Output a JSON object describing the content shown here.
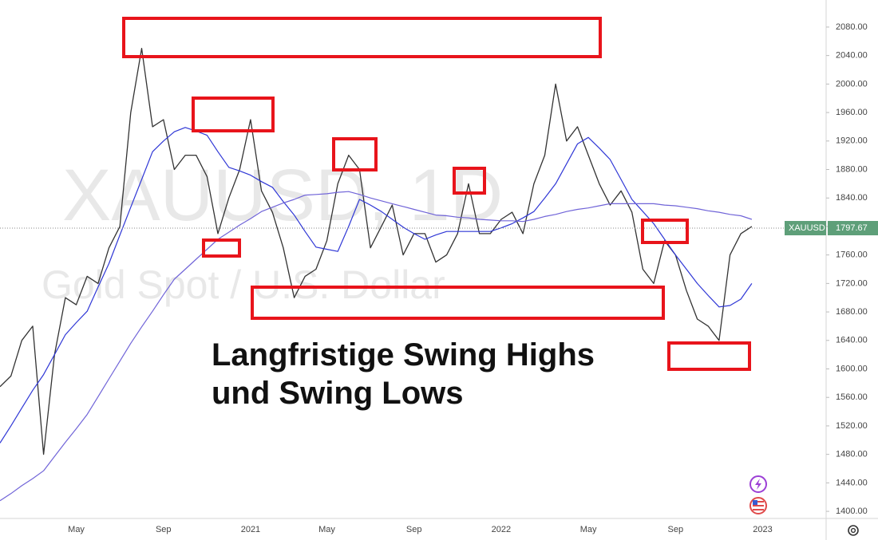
{
  "chart_data": {
    "type": "line",
    "watermark_symbol": "XAUUSD, 1D",
    "watermark_description": "Gold Spot / U.S. Dollar",
    "annotations": [
      "Langfristige Swing Highs",
      "und Swing Lows"
    ],
    "categories": [
      null,
      null,
      null,
      null,
      null,
      null,
      null,
      "May",
      null,
      null,
      null,
      null,
      null,
      null,
      null,
      "Sep",
      null,
      null,
      null,
      null,
      null,
      null,
      null,
      "2021",
      null,
      null,
      null,
      null,
      null,
      null,
      "May",
      null,
      null,
      null,
      null,
      null,
      null,
      null,
      "Sep",
      null,
      null,
      null,
      null,
      null,
      null,
      null,
      "2022",
      null,
      null,
      null,
      null,
      null,
      null,
      null,
      "May",
      null,
      null,
      null,
      null,
      null,
      null,
      null,
      "Sep",
      null,
      null,
      null,
      null,
      null,
      null,
      null,
      "2023"
    ],
    "series": [
      {
        "name": "XAUUSD",
        "color": "#333333",
        "values": [
          1575,
          1590,
          1640,
          1660,
          1480,
          1620,
          1700,
          1690,
          1730,
          1720,
          1770,
          1800,
          1960,
          2050,
          1940,
          1950,
          1880,
          1900,
          1900,
          1870,
          1790,
          1840,
          1880,
          1950,
          1850,
          1820,
          1770,
          1700,
          1730,
          1740,
          1780,
          1860,
          1900,
          1880,
          1770,
          1800,
          1830,
          1760,
          1790,
          1790,
          1750,
          1760,
          1790,
          1860,
          1790,
          1790,
          1810,
          1820,
          1790,
          1860,
          1900,
          2000,
          1920,
          1940,
          1900,
          1860,
          1830,
          1850,
          1820,
          1740,
          1720,
          1780,
          1760,
          1710,
          1670,
          1660,
          1640,
          1760,
          1790,
          1800,
          null
        ]
      },
      {
        "color": "#2f37d6",
        "values": [
          1496,
          1520,
          1545,
          1570,
          1592,
          1620,
          1648,
          1665,
          1681,
          1715,
          1748,
          1788,
          1827,
          1866,
          1905,
          1920,
          1933,
          1939,
          1934,
          1928,
          1905,
          1883,
          1878,
          1872,
          1863,
          1855,
          1835,
          1816,
          1793,
          1771,
          1768,
          1765,
          1800,
          1838,
          1830,
          1821,
          1810,
          1799,
          1790,
          1782,
          1788,
          1793,
          1793,
          1793,
          1793,
          1793,
          1798,
          1804,
          1812,
          1821,
          1840,
          1860,
          1888,
          1916,
          1925,
          1910,
          1894,
          1866,
          1838,
          1821,
          1804,
          1782,
          1760,
          1740,
          1720,
          1703,
          1687,
          1689,
          1698,
          1720,
          null
        ]
      },
      {
        "color": "#7064d8",
        "values": [
          1415,
          1425,
          1436,
          1446,
          1457,
          1477,
          1497,
          1516,
          1536,
          1561,
          1586,
          1611,
          1636,
          1659,
          1681,
          1704,
          1726,
          1740,
          1754,
          1768,
          1782,
          1792,
          1802,
          1811,
          1821,
          1827,
          1833,
          1838,
          1844,
          1845,
          1846,
          1848,
          1849,
          1845,
          1840,
          1836,
          1832,
          1828,
          1824,
          1820,
          1816,
          1815,
          1813,
          1812,
          1810,
          1809,
          1808,
          1808,
          1807,
          1810,
          1814,
          1817,
          1821,
          1824,
          1826,
          1829,
          1832,
          1832,
          1832,
          1832,
          1832,
          1830,
          1829,
          1827,
          1825,
          1822,
          1820,
          1817,
          1815,
          1810,
          null
        ]
      }
    ],
    "last_price": 1797.67,
    "last_price_color": "#5e9f79",
    "ylim": [
      1390,
      2118
    ],
    "yticks": [
      {
        "value": 1400,
        "label": "1400.00"
      },
      {
        "value": 1440,
        "label": "1440.00"
      },
      {
        "value": 1480,
        "label": "1480.00"
      },
      {
        "value": 1520,
        "label": "1520.00"
      },
      {
        "value": 1560,
        "label": "1560.00"
      },
      {
        "value": 1600,
        "label": "1600.00"
      },
      {
        "value": 1640,
        "label": "1640.00"
      },
      {
        "value": 1680,
        "label": "1680.00"
      },
      {
        "value": 1720,
        "label": "1720.00"
      },
      {
        "value": 1760,
        "label": "1760.00"
      },
      {
        "value": 1800,
        "label": "1800.00"
      },
      {
        "value": 1840,
        "label": "1840.00"
      },
      {
        "value": 1880,
        "label": "1880.00"
      },
      {
        "value": 1920,
        "label": "1920.00"
      },
      {
        "value": 1960,
        "label": "1960.00"
      },
      {
        "value": 2000,
        "label": "2000.00"
      },
      {
        "value": 2040,
        "label": "2040.00"
      },
      {
        "value": 2080,
        "label": "2080.00"
      }
    ],
    "grid": false
  }
}
